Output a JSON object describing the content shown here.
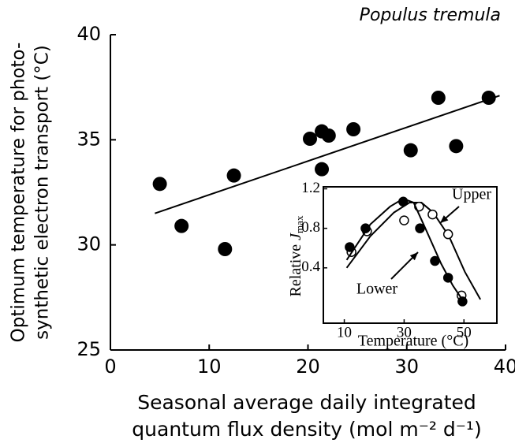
{
  "chart_data": [
    {
      "type": "scatter",
      "title": "Populus tremula",
      "xlabel": [
        "Seasonal average daily integrated",
        "quantum flux density (mol m⁻² d⁻¹)"
      ],
      "ylabel": [
        "Optimum temperature for photo-",
        "synthetic electron transport (°C)"
      ],
      "xlim": [
        0,
        40
      ],
      "ylim": [
        25,
        40
      ],
      "xticks": [
        0,
        10,
        20,
        30,
        40
      ],
      "yticks": [
        25,
        30,
        35,
        40
      ],
      "color": "#000000",
      "x": [
        5.0,
        7.2,
        11.6,
        12.5,
        20.2,
        21.4,
        21.4,
        22.1,
        24.6,
        30.4,
        33.2,
        35.0,
        38.3
      ],
      "values": [
        32.9,
        30.9,
        29.8,
        33.3,
        35.05,
        35.4,
        33.6,
        35.2,
        35.5,
        34.5,
        37.0,
        34.7,
        37.0
      ],
      "fit_line": {
        "x": [
          4.5,
          39.4
        ],
        "values": [
          31.5,
          37.1
        ]
      }
    },
    {
      "type": "scatter",
      "xlabel": "Temperature (°C)",
      "ylabel": {
        "text": "Relative",
        "variable": "J",
        "subscript": "max"
      },
      "xlim": [
        3,
        61
      ],
      "ylim": [
        -0.16,
        1.22
      ],
      "xticks": [
        10,
        30,
        50
      ],
      "yticks": [
        0.4,
        0.8,
        1.2
      ],
      "series": [
        {
          "name": "Upper",
          "marker": "open",
          "color": "#000000",
          "x": [
            12.4,
            17.6,
            30,
            35,
            39.5,
            44.7,
            49.2
          ],
          "values": [
            0.56,
            0.77,
            0.88,
            1.02,
            0.94,
            0.74,
            0.12
          ],
          "fit_x": [
            10.8,
            18.7,
            26.6,
            31.8,
            35.8,
            39.7,
            45,
            50.3,
            55.5
          ],
          "fit_values": [
            0.4,
            0.72,
            0.96,
            1.06,
            1.06,
            0.96,
            0.72,
            0.36,
            0.08
          ]
        },
        {
          "name": "Lower",
          "marker": "filled",
          "color": "#000000",
          "x": [
            11.8,
            17.1,
            29.7,
            35.3,
            40.3,
            44.7,
            49.5
          ],
          "values": [
            0.61,
            0.8,
            1.07,
            0.8,
            0.47,
            0.3,
            0.06
          ],
          "fit_x": [
            10.8,
            18.7,
            25.3,
            29.7,
            33.2,
            37.1,
            42.4,
            46.3,
            50.3
          ],
          "fit_values": [
            0.48,
            0.84,
            1.02,
            1.1,
            1.06,
            0.8,
            0.44,
            0.22,
            0.04
          ]
        }
      ]
    }
  ]
}
